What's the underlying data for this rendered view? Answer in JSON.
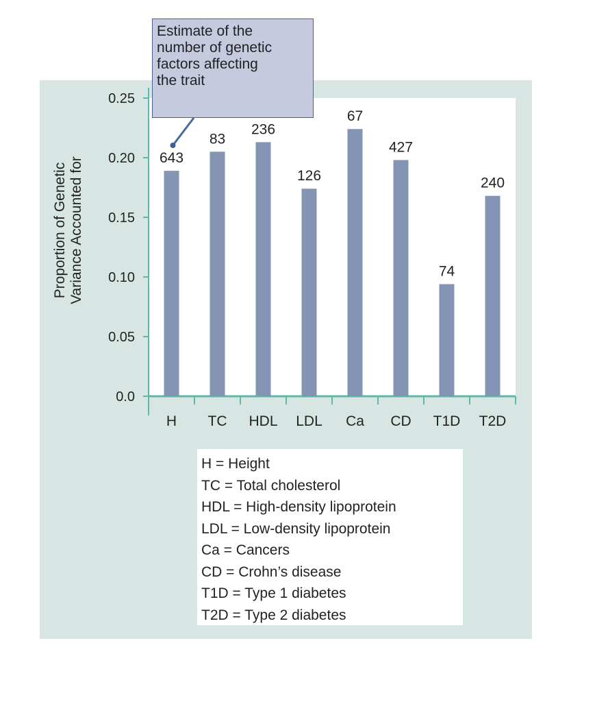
{
  "chart_data": {
    "type": "bar",
    "title": "",
    "xlabel": "",
    "ylabel": "Proportion of Genetic Variance Accounted for",
    "ylabel_lines": [
      "Proportion of Genetic",
      "Variance Accounted for"
    ],
    "ylim": [
      0,
      0.25
    ],
    "yticks": [
      "0.0",
      "0.05",
      "0.10",
      "0.15",
      "0.20",
      "0.25"
    ],
    "categories": [
      "H",
      "TC",
      "HDL",
      "LDL",
      "Ca",
      "CD",
      "T1D",
      "T2D"
    ],
    "values": [
      0.189,
      0.205,
      0.213,
      0.174,
      0.224,
      0.198,
      0.094,
      0.168
    ],
    "bar_labels": [
      "643",
      "83",
      "236",
      "126",
      "67",
      "427",
      "74",
      "240"
    ],
    "bar_color": "#8494b4",
    "annotation_lines": [
      "Estimate of the",
      "number of genetic",
      "factors affecting",
      "the trait"
    ],
    "legend": [
      "H = Height",
      "TC = Total cholesterol",
      "HDL = High-density lipoprotein",
      "LDL = Low-density lipoprotein",
      "Ca = Cancers",
      "CD = Crohn’s disease",
      "T1D = Type 1 diabetes",
      "T2D = Type 2 diabetes"
    ]
  }
}
